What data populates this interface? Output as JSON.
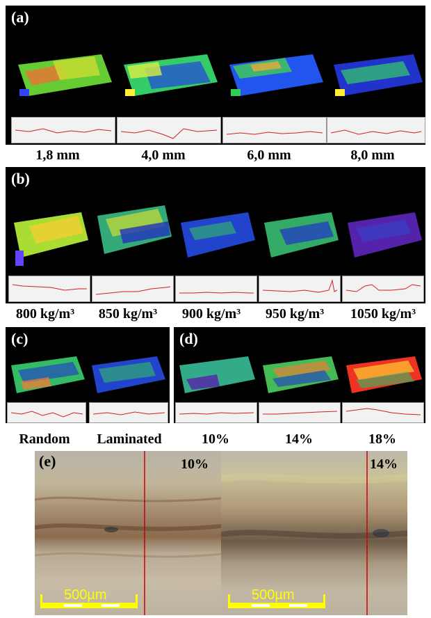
{
  "panels": {
    "a": {
      "label": "(a)",
      "captions": [
        "1,8 mm",
        "4,0 mm",
        "6,0 mm",
        "8,0 mm"
      ]
    },
    "b": {
      "label": "(b)",
      "captions": [
        "800 kg/m³",
        "850 kg/m³",
        "900 kg/m³",
        "950 kg/m³",
        "1050 kg/m³"
      ]
    },
    "c": {
      "label": "(c)",
      "captions": [
        "Random",
        "Laminated"
      ]
    },
    "d": {
      "label": "(d)",
      "captions": [
        "10%",
        "14%",
        "18%"
      ]
    },
    "e": {
      "label": "(e)",
      "left_tag": "10%",
      "right_tag": "14%",
      "scale_left": "500µm",
      "scale_right": "500µm"
    }
  },
  "colors": {
    "background": "#000000",
    "profile_line": "#d02020",
    "scale_bar": "#ffff00",
    "divider_line": "#cc0000"
  }
}
